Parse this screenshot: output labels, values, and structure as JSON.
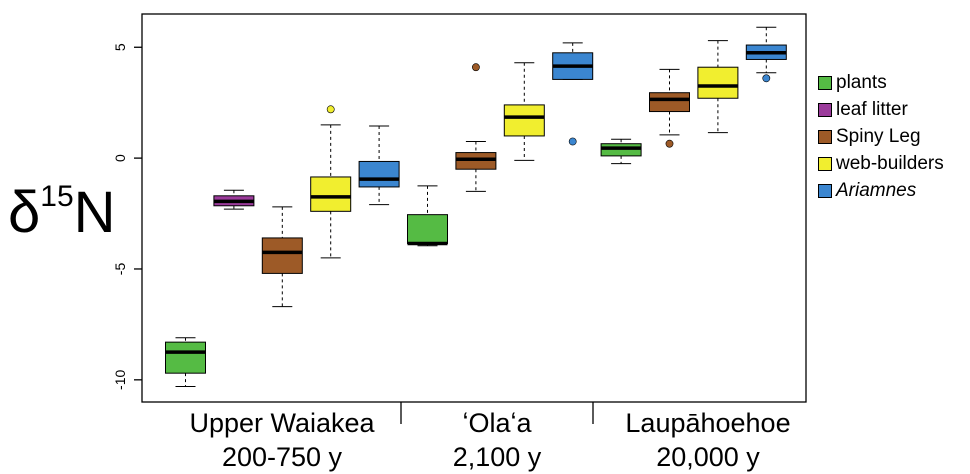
{
  "chart_data": {
    "type": "boxplot",
    "ylabel": {
      "base": "δ",
      "sup": "15",
      "main": "N"
    },
    "ylim": [
      -11,
      6.5
    ],
    "yticks": [
      -10,
      -5,
      0,
      5
    ],
    "groups": [
      {
        "name": "Upper Waiakea",
        "age": "200-750 y"
      },
      {
        "name": "ʻOlaʻa",
        "age": "2,100 y"
      },
      {
        "name": "Laupāhoehoe",
        "age": "20,000 y"
      }
    ],
    "series": [
      {
        "name": "plants",
        "color": "#55bb44"
      },
      {
        "name": "leaf litter",
        "color": "#9b3b9b"
      },
      {
        "name": "Spiny Leg",
        "color": "#9d5a27"
      },
      {
        "name": "web-builders",
        "color": "#f1ee2f"
      },
      {
        "name": "Ariamnes",
        "color": "#3b86d0",
        "italic": true
      }
    ],
    "boxes": [
      {
        "group": 0,
        "series": "plants",
        "min": -10.3,
        "q1": -9.7,
        "median": -8.75,
        "q3": -8.3,
        "max": -8.1,
        "outliers": []
      },
      {
        "group": 0,
        "series": "leaf litter",
        "min": -2.3,
        "q1": -2.15,
        "median": -1.95,
        "q3": -1.7,
        "max": -1.45,
        "outliers": []
      },
      {
        "group": 0,
        "series": "Spiny Leg",
        "min": -6.7,
        "q1": -5.2,
        "median": -4.25,
        "q3": -3.6,
        "max": -2.2,
        "outliers": []
      },
      {
        "group": 0,
        "series": "web-builders",
        "min": -4.5,
        "q1": -2.4,
        "median": -1.75,
        "q3": -0.85,
        "max": 1.5,
        "outliers": [
          2.2
        ]
      },
      {
        "group": 0,
        "series": "Ariamnes",
        "min": -2.1,
        "q1": -1.3,
        "median": -0.95,
        "q3": -0.15,
        "max": 1.45,
        "outliers": []
      },
      {
        "group": 1,
        "series": "plants",
        "min": -3.95,
        "q1": -3.85,
        "median": -3.85,
        "q3": -2.55,
        "max": -1.25,
        "outliers": []
      },
      {
        "group": 1,
        "series": "Spiny Leg",
        "min": -1.5,
        "q1": -0.5,
        "median": -0.05,
        "q3": 0.25,
        "max": 0.75,
        "outliers": [
          4.1
        ]
      },
      {
        "group": 1,
        "series": "web-builders",
        "min": -0.1,
        "q1": 1.0,
        "median": 1.85,
        "q3": 2.4,
        "max": 4.3,
        "outliers": []
      },
      {
        "group": 1,
        "series": "Ariamnes",
        "min": 3.55,
        "q1": 3.55,
        "median": 4.15,
        "q3": 4.75,
        "max": 5.2,
        "outliers": [
          0.75
        ]
      },
      {
        "group": 2,
        "series": "plants",
        "min": -0.25,
        "q1": 0.1,
        "median": 0.45,
        "q3": 0.65,
        "max": 0.85,
        "outliers": []
      },
      {
        "group": 2,
        "series": "Spiny Leg",
        "min": 1.05,
        "q1": 2.1,
        "median": 2.65,
        "q3": 2.95,
        "max": 4.0,
        "outliers": [
          0.65
        ]
      },
      {
        "group": 2,
        "series": "web-builders",
        "min": 1.15,
        "q1": 2.7,
        "median": 3.25,
        "q3": 4.1,
        "max": 5.3,
        "outliers": []
      },
      {
        "group": 2,
        "series": "Ariamnes",
        "min": 3.85,
        "q1": 4.45,
        "median": 4.75,
        "q3": 5.1,
        "max": 5.9,
        "outliers": [
          3.6
        ]
      }
    ]
  }
}
